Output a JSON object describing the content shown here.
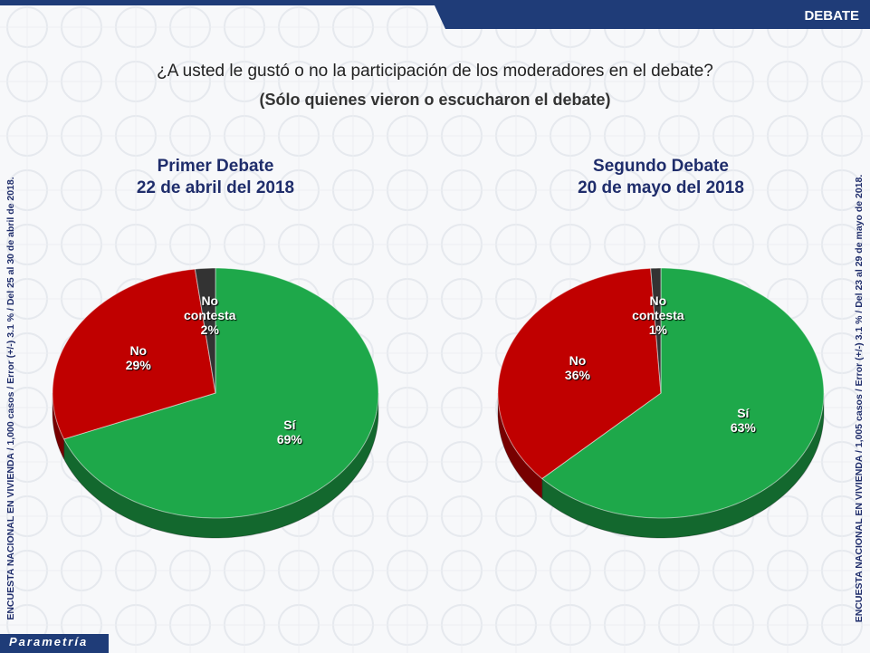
{
  "header": "DEBATE",
  "title": "¿A usted le gustó o no la participación de los moderadores en el debate?",
  "subtitle": "(Sólo quienes vieron o escucharon el debate)",
  "left_note": "ENCUESTA NACIONAL EN VIVIENDA / 1,000 casos / Error (+/-) 3.1 % / Del 25 al 30 de abril de 2018.",
  "right_note": "ENCUESTA NACIONAL EN VIVIENDA / 1,005 casos / Error (+/-) 3.1 % / Del 23 al 29 de mayo de 2018.",
  "footer": "Parametría",
  "chart_data": [
    {
      "type": "pie",
      "title": "Primer Debate",
      "subtitle": "22 de abril del 2018",
      "categories": [
        "Sí",
        "No",
        "No contesta"
      ],
      "values": [
        69,
        29,
        2
      ],
      "value_labels": [
        "69%",
        "29%",
        "2%"
      ],
      "colors": [
        "#1ea84a",
        "#c00000",
        "#333333"
      ]
    },
    {
      "type": "pie",
      "title": "Segundo Debate",
      "subtitle": "20 de mayo del 2018",
      "categories": [
        "Sí",
        "No",
        "No contesta"
      ],
      "values": [
        63,
        36,
        1
      ],
      "value_labels": [
        "63%",
        "36%",
        "1%"
      ],
      "colors": [
        "#1ea84a",
        "#c00000",
        "#333333"
      ]
    }
  ]
}
